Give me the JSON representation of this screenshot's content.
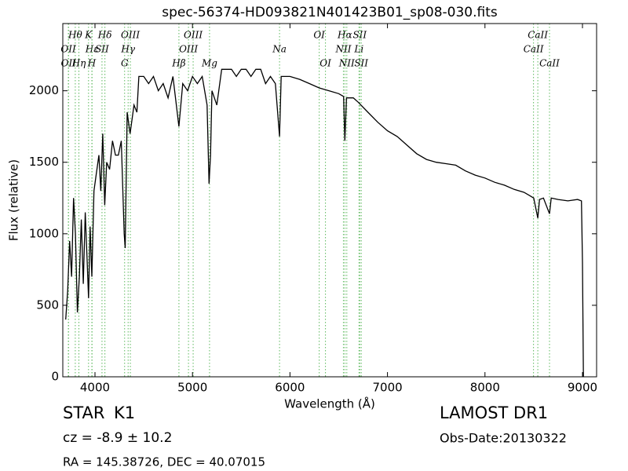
{
  "chart_data": {
    "type": "line",
    "title": "spec-56374-HD093821N401423B01_sp08-030.fits",
    "x_label": "Wavelength (Å)",
    "y_label": "Flux (relative)",
    "xlim": [
      3670,
      9145
    ],
    "ylim": [
      0,
      2470
    ],
    "xticks": [
      4000,
      5000,
      6000,
      7000,
      8000,
      9000
    ],
    "yticks": [
      0,
      500,
      1000,
      1500,
      2000
    ],
    "series": [
      {
        "color": "#000000",
        "x": [
          3700,
          3720,
          3740,
          3760,
          3780,
          3800,
          3820,
          3840,
          3860,
          3880,
          3900,
          3920,
          3934,
          3950,
          3968,
          3990,
          4010,
          4040,
          4060,
          4080,
          4100,
          4120,
          4150,
          4180,
          4210,
          4240,
          4270,
          4300,
          4310,
          4330,
          4360,
          4380,
          4400,
          4430,
          4450,
          4500,
          4550,
          4600,
          4650,
          4700,
          4750,
          4800,
          4861,
          4900,
          4950,
          5000,
          5050,
          5100,
          5150,
          5170,
          5185,
          5200,
          5250,
          5300,
          5350,
          5400,
          5450,
          5500,
          5550,
          5600,
          5650,
          5700,
          5750,
          5800,
          5850,
          5893,
          5910,
          6000,
          6100,
          6200,
          6300,
          6400,
          6500,
          6550,
          6563,
          6580,
          6650,
          6700,
          6800,
          6900,
          7000,
          7100,
          7200,
          7300,
          7400,
          7500,
          7600,
          7700,
          7800,
          7900,
          8000,
          8100,
          8200,
          8300,
          8400,
          8450,
          8500,
          8542,
          8560,
          8600,
          8662,
          8680,
          8750,
          8850,
          8950,
          8990,
          9000,
          9010
        ],
        "values": [
          400,
          600,
          950,
          700,
          1250,
          1000,
          450,
          700,
          1100,
          650,
          1150,
          800,
          550,
          1050,
          700,
          1300,
          1400,
          1550,
          1300,
          1700,
          1200,
          1500,
          1450,
          1650,
          1550,
          1550,
          1650,
          1000,
          900,
          1850,
          1700,
          1800,
          1900,
          1850,
          2100,
          2100,
          2050,
          2100,
          2000,
          2050,
          1950,
          2100,
          1750,
          2050,
          2000,
          2100,
          2050,
          2100,
          1900,
          1350,
          1550,
          2000,
          1900,
          2150,
          2150,
          2150,
          2100,
          2150,
          2150,
          2100,
          2150,
          2150,
          2050,
          2100,
          2050,
          1680,
          2100,
          2100,
          2080,
          2050,
          2020,
          2000,
          1980,
          1960,
          1650,
          1950,
          1950,
          1920,
          1850,
          1780,
          1720,
          1680,
          1620,
          1560,
          1520,
          1500,
          1490,
          1480,
          1440,
          1410,
          1390,
          1360,
          1340,
          1310,
          1290,
          1270,
          1250,
          1110,
          1240,
          1250,
          1140,
          1250,
          1240,
          1230,
          1240,
          1230,
          800,
          0
        ]
      }
    ],
    "line_color": "#5cb85c",
    "spectral_lines": [
      [
        {
          "label": "Hθ",
          "x": 3798
        },
        {
          "label": "K",
          "x": 3934
        },
        {
          "label": "Hδ",
          "x": 4102
        },
        {
          "label": "OIII",
          "x": 4363
        },
        {
          "label": "OIII",
          "x": 5007
        },
        {
          "label": "OI",
          "x": 6300
        },
        {
          "label": "Hα",
          "x": 6563
        },
        {
          "label": "SII",
          "x": 6716
        },
        {
          "label": "CaII",
          "x": 8542
        }
      ],
      [
        {
          "label": "OII",
          "x": 3727
        },
        {
          "label": "Hε",
          "x": 3970
        },
        {
          "label": "SII",
          "x": 4072
        },
        {
          "label": "Hγ",
          "x": 4340
        },
        {
          "label": "OIII",
          "x": 4959
        },
        {
          "label": "Na",
          "x": 5893
        },
        {
          "label": "NII",
          "x": 6548
        },
        {
          "label": "Li",
          "x": 6708
        },
        {
          "label": "CaII",
          "x": 8498
        }
      ],
      [
        {
          "label": "OII",
          "x": 3729
        },
        {
          "label": "Hη",
          "x": 3835
        },
        {
          "label": "H",
          "x": 3968
        },
        {
          "label": "G",
          "x": 4304
        },
        {
          "label": "Hβ",
          "x": 4861
        },
        {
          "label": "Mg",
          "x": 5175
        },
        {
          "label": "OI",
          "x": 6364
        },
        {
          "label": "NII",
          "x": 6583
        },
        {
          "label": "SII",
          "x": 6731
        },
        {
          "label": "CaII",
          "x": 8662
        }
      ]
    ],
    "object_class": "STAR",
    "subclass": "K1",
    "redshift": "cz = -8.9 ± 10.2",
    "coordinates": "RA = 145.38726, DEC = 40.07015",
    "survey": "LAMOST DR1",
    "obs_date": "Obs-Date:20130322"
  }
}
